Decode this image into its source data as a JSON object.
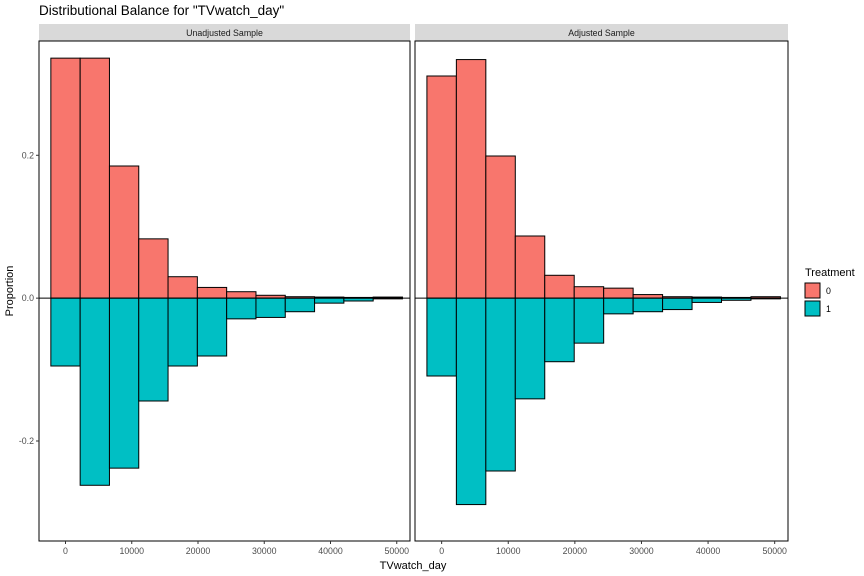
{
  "chart_data": {
    "type": "bar",
    "title": "Distributional Balance for \"TVwatch_day\"",
    "xlabel": "TVwatch_day",
    "ylabel": "Proportion",
    "bin_width": 4423,
    "bin_centers": [
      0,
      4423,
      8846,
      13269,
      17692,
      22115,
      26538,
      30961,
      35384,
      39807,
      44230,
      48653
    ],
    "xlim": [
      -4000,
      52000
    ],
    "ylim": [
      -0.34,
      0.36
    ],
    "x_ticks": [
      0,
      10000,
      20000,
      30000,
      40000,
      50000
    ],
    "x_tick_labels": [
      "0",
      "10000",
      "20000",
      "30000",
      "40000",
      "50000"
    ],
    "y_ticks": [
      -0.2,
      0.0,
      0.2
    ],
    "y_tick_labels": [
      "-0.2",
      "0.0",
      "0.2"
    ],
    "legend": {
      "title": "Treatment",
      "entries": [
        {
          "label": "0",
          "color": "#F8766D"
        },
        {
          "label": "1",
          "color": "#00BFC4"
        }
      ],
      "position": "right"
    },
    "panels": [
      {
        "strip": "Unadjusted Sample",
        "series": [
          {
            "name": "0",
            "values": [
              0.336,
              0.336,
              0.185,
              0.083,
              0.03,
              0.015,
              0.009,
              0.004,
              0.002,
              0.0015,
              0.001,
              0.0015
            ]
          },
          {
            "name": "1",
            "values": [
              -0.095,
              -0.262,
              -0.238,
              -0.144,
              -0.095,
              -0.081,
              -0.029,
              -0.027,
              -0.019,
              -0.007,
              -0.004,
              -0.001
            ]
          }
        ]
      },
      {
        "strip": "Adjusted Sample",
        "series": [
          {
            "name": "0",
            "values": [
              0.311,
              0.334,
              0.199,
              0.087,
              0.032,
              0.016,
              0.014,
              0.005,
              0.002,
              0.0015,
              0.001,
              0.002
            ]
          },
          {
            "name": "1",
            "values": [
              -0.109,
              -0.289,
              -0.242,
              -0.141,
              -0.089,
              -0.063,
              -0.022,
              -0.019,
              -0.016,
              -0.006,
              -0.003,
              -0.001
            ]
          }
        ]
      }
    ],
    "grid": false
  }
}
